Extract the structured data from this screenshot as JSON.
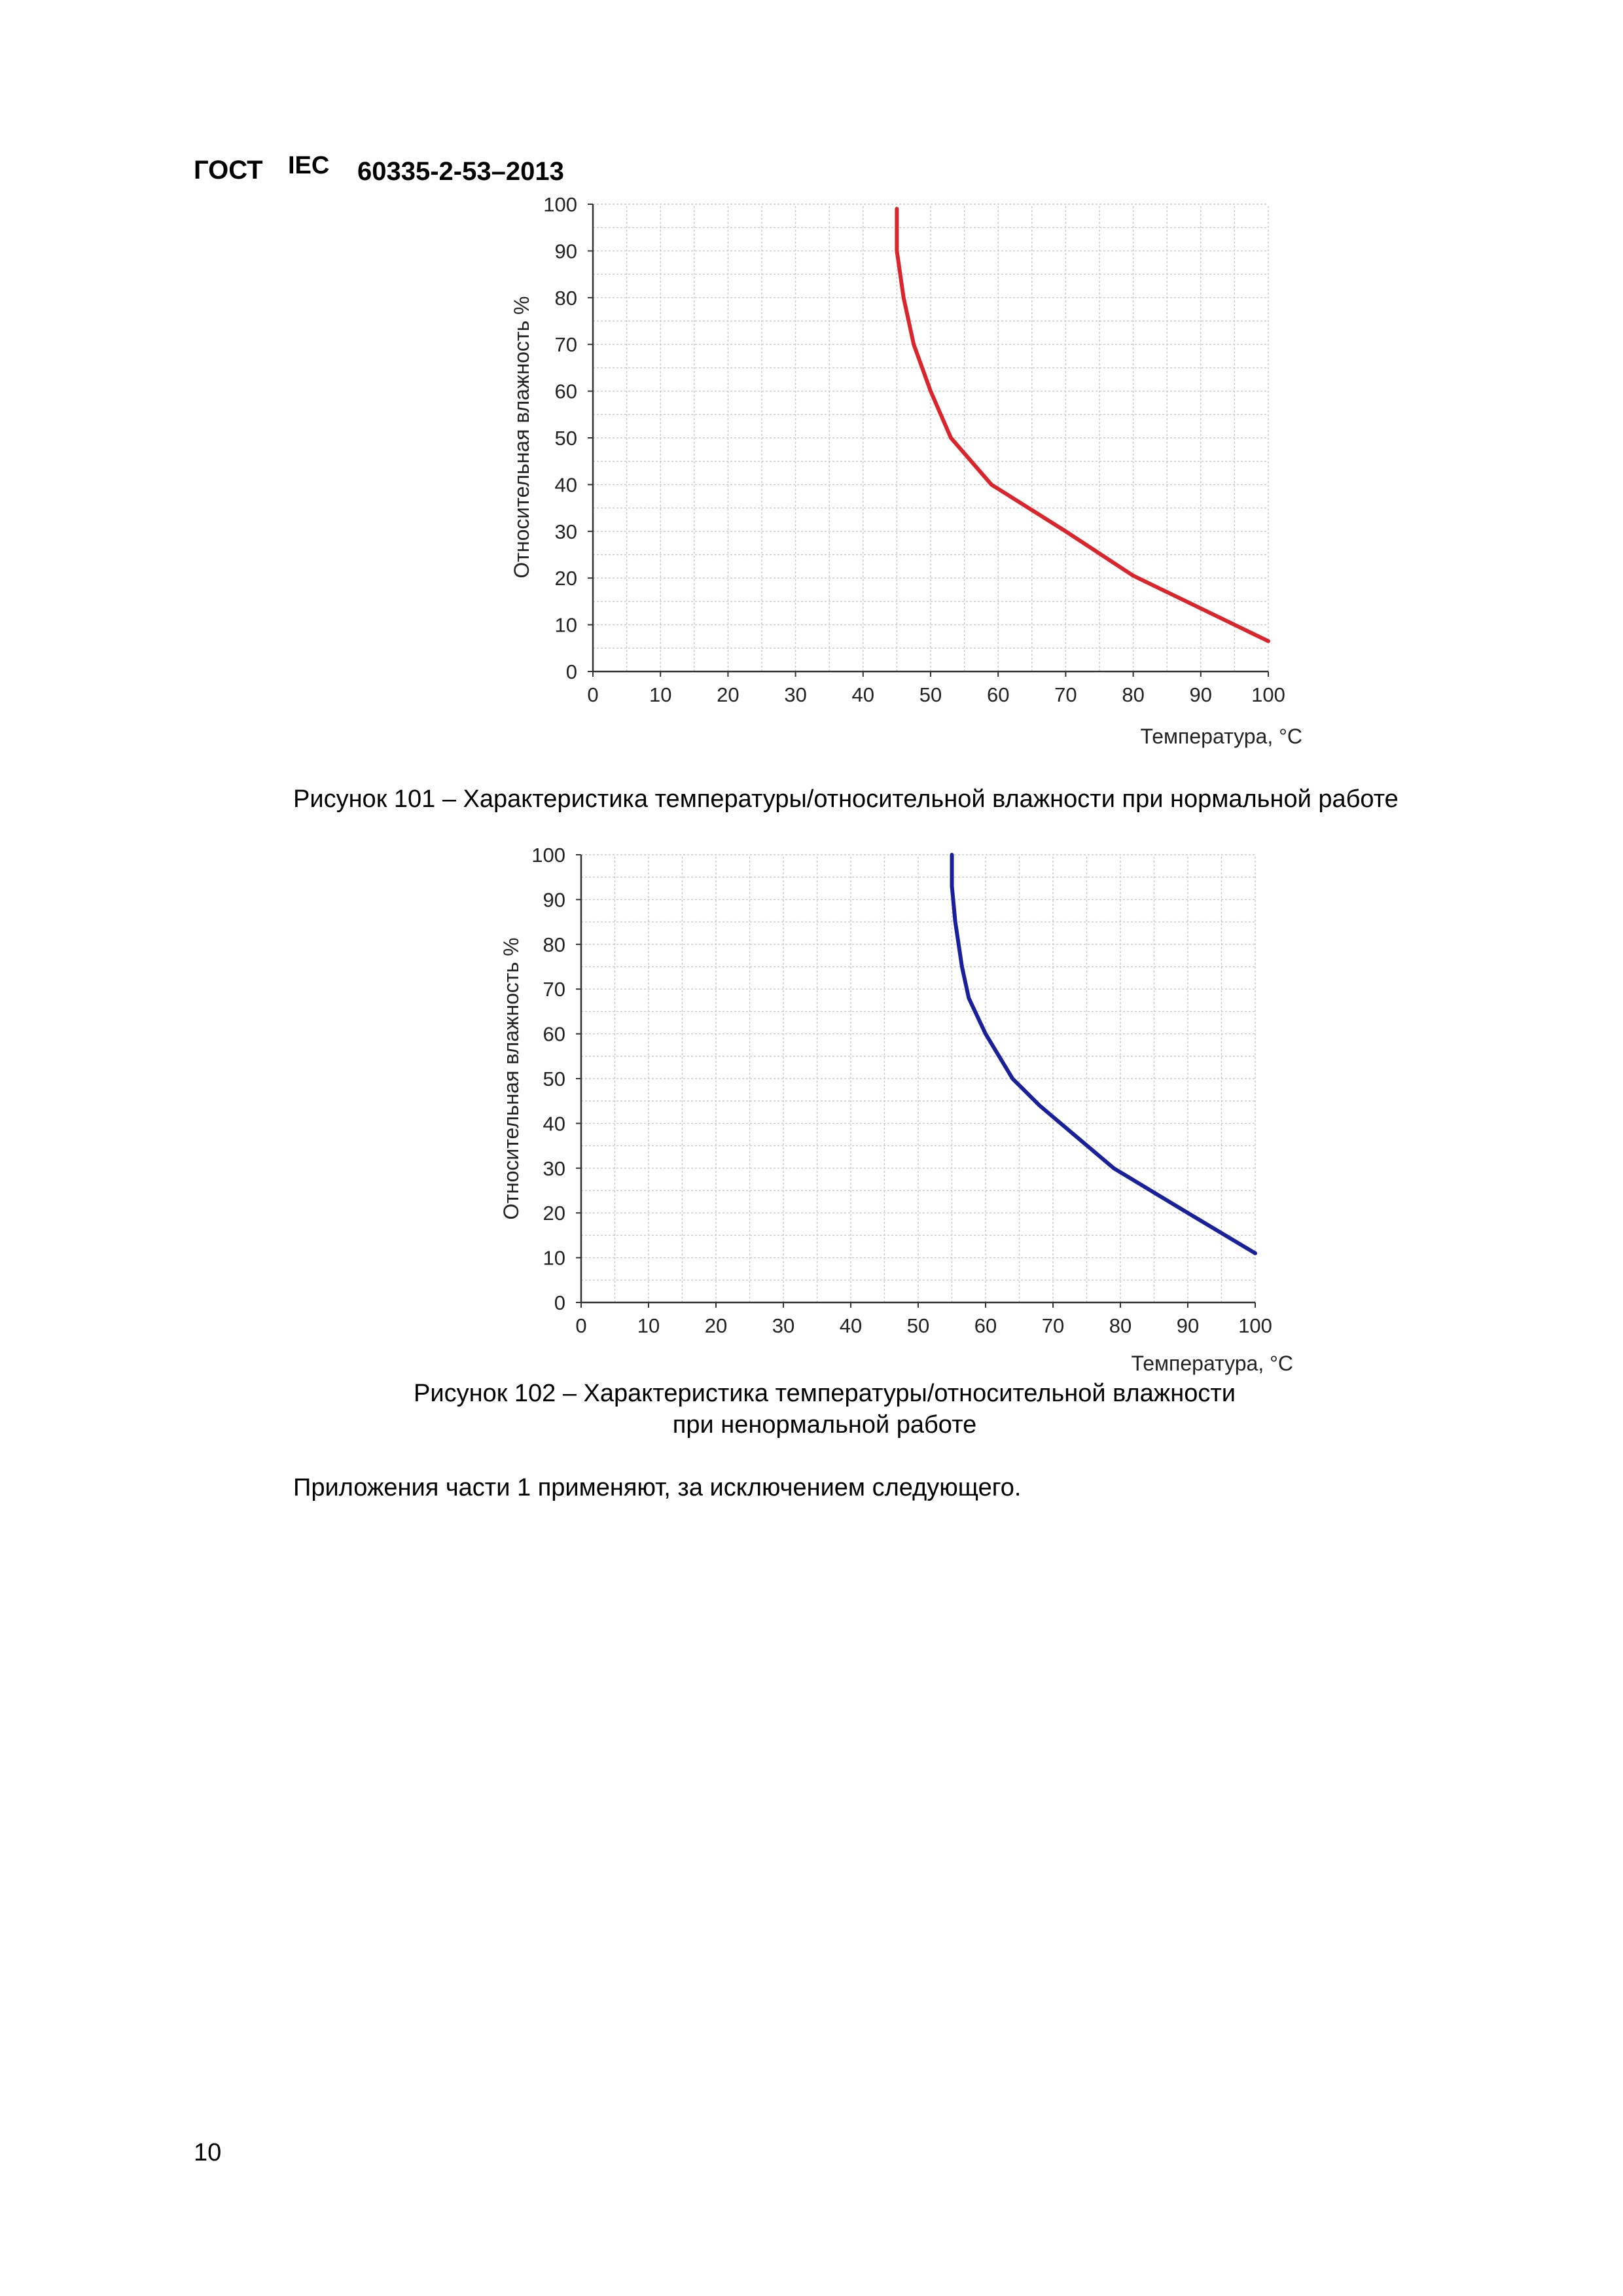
{
  "header": {
    "gost": "ГОСТ",
    "iec": "IEC",
    "number": "60335-2-53–2013"
  },
  "page_number": "10",
  "figure101": {
    "caption": "Рисунок 101 – Характеристика температуры/относительной влажности при нормальной работе"
  },
  "figure102": {
    "caption_line1": "Рисунок 102 – Характеристика температуры/относительной влажности",
    "caption_line2": "при ненормальной работе"
  },
  "paragraph": "Приложения части 1 применяют, за исключением следующего.",
  "chart_data": [
    {
      "type": "line",
      "title": "",
      "xlabel": "Температура, °С",
      "ylabel": "Относительная влажность  %",
      "xlim": [
        0,
        100
      ],
      "ylim": [
        0,
        100
      ],
      "xticks": [
        "0",
        "10",
        "20",
        "30",
        "40",
        "50",
        "60",
        "70",
        "80",
        "90",
        "100"
      ],
      "yticks": [
        "0",
        "10",
        "20",
        "30",
        "40",
        "50",
        "60",
        "70",
        "80",
        "90",
        "100"
      ],
      "grid": true,
      "series": [
        {
          "color": "#d9252b",
          "x": [
            45,
            45,
            45.2,
            46,
            47.5,
            50,
            53,
            59,
            70,
            80,
            90,
            100
          ],
          "y": [
            99,
            90,
            88,
            80,
            70,
            60,
            50,
            40,
            30,
            20.5,
            13.5,
            6.5
          ]
        }
      ]
    },
    {
      "type": "line",
      "title": "",
      "xlabel": "Температура, °С",
      "ylabel": "Относительная влажность  %",
      "xlim": [
        0,
        100
      ],
      "ylim": [
        0,
        100
      ],
      "xticks": [
        "0",
        "10",
        "20",
        "30",
        "40",
        "50",
        "60",
        "70",
        "80",
        "90",
        "100"
      ],
      "yticks": [
        "0",
        "10",
        "20",
        "30",
        "40",
        "50",
        "60",
        "70",
        "80",
        "90",
        "100"
      ],
      "grid": true,
      "series": [
        {
          "color": "#1a1f9a",
          "x": [
            55,
            55,
            55.5,
            56.5,
            57.5,
            60,
            64,
            68,
            79,
            90,
            100
          ],
          "y": [
            100,
            93,
            85,
            75,
            68,
            60,
            50,
            44,
            30,
            20,
            11
          ]
        }
      ]
    }
  ]
}
